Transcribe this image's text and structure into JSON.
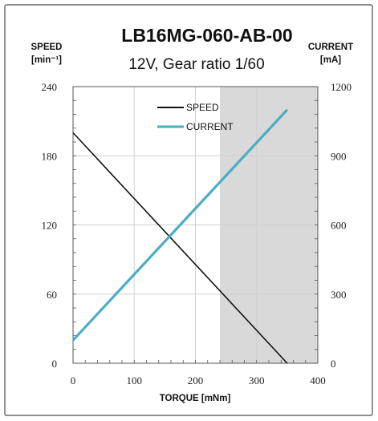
{
  "chart_data": {
    "type": "line",
    "title": "LB16MG-060-AB-00",
    "subtitle": "12V, Gear ratio 1/60",
    "xlabel": "TORQUE [mNm]",
    "ylabel_left": [
      "SPEED",
      "[min⁻¹]"
    ],
    "ylabel_right": [
      "CURRENT",
      "[mA]"
    ],
    "xlim": [
      0,
      400
    ],
    "ylim_left": [
      0,
      240
    ],
    "ylim_right": [
      0,
      1200
    ],
    "x_ticks": [
      "0",
      "100",
      "200",
      "300",
      "400"
    ],
    "y_left_ticks": [
      "0",
      "60",
      "120",
      "180",
      "240"
    ],
    "y_right_ticks": [
      "0",
      "300",
      "600",
      "900",
      "1200"
    ],
    "grid": true,
    "legend_position": "top-center",
    "shaded_region": {
      "x_from": 240,
      "x_to": 400,
      "color": "#d9d9d9"
    },
    "series": [
      {
        "name": "SPEED",
        "axis": "left",
        "color": "#111111",
        "x": [
          0,
          350
        ],
        "y": [
          200,
          0
        ]
      },
      {
        "name": "CURRENT",
        "axis": "right",
        "color": "#4bacc6",
        "x": [
          0,
          350
        ],
        "y": [
          100,
          1100
        ]
      }
    ]
  }
}
